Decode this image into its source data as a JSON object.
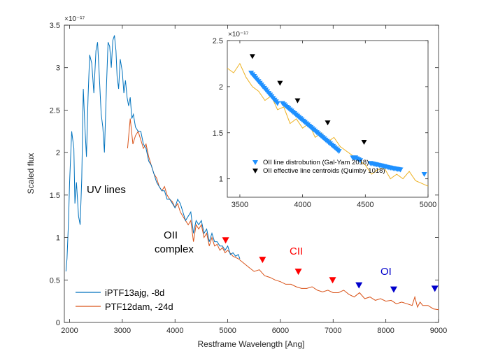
{
  "colors": {
    "blue_series": "#0072BD",
    "orange_series": "#D95319",
    "cii_marker": "#FF0000",
    "oi_marker": "#0000CC",
    "inset_blue": "#1E90FF",
    "inset_orange": "#EDB120",
    "inset_black": "#000000"
  },
  "chart_data": [
    {
      "type": "line",
      "xlabel": "Restframe Wavelength [Ang]",
      "ylabel": "Scaled flux",
      "y_exponent": "×10⁻¹⁷",
      "xlim": [
        1900,
        9000
      ],
      "ylim": [
        0,
        3.5e-17
      ],
      "xticks": [
        2000,
        3000,
        4000,
        5000,
        6000,
        7000,
        8000,
        9000
      ],
      "xtick_labels": [
        "2000",
        "3000",
        "4000",
        "5000",
        "6000",
        "7000",
        "8000",
        "9000"
      ],
      "yticks": [
        0,
        0.5,
        1,
        1.5,
        2,
        2.5,
        3,
        3.5
      ],
      "ytick_labels": [
        "0",
        "0.5",
        "1",
        "1.5",
        "2",
        "2.5",
        "3",
        "3.5"
      ],
      "grid": false,
      "legend_position": "bottom-left",
      "series": [
        {
          "name": "iPTF13ajg, -8d",
          "color": "#0072BD",
          "x": [
            1930,
            1950,
            1980,
            2000,
            2040,
            2080,
            2100,
            2130,
            2170,
            2200,
            2230,
            2260,
            2290,
            2320,
            2350,
            2380,
            2420,
            2460,
            2500,
            2530,
            2560,
            2600,
            2630,
            2660,
            2700,
            2730,
            2760,
            2790,
            2820,
            2850,
            2880,
            2900,
            2930,
            2960,
            3000,
            3030,
            3060,
            3090,
            3120,
            3150,
            3180,
            3210,
            3250,
            3300,
            3350,
            3400,
            3450,
            3500,
            3550,
            3600,
            3650,
            3700,
            3750,
            3800,
            3850,
            3900,
            3950,
            4000,
            4050,
            4100,
            4150,
            4200,
            4250,
            4300,
            4350,
            4400,
            4450,
            4500,
            4550,
            4600,
            4650,
            4700,
            4750,
            4800,
            4850,
            4900,
            4950,
            5000,
            5050,
            5100,
            5150,
            5200,
            5230
          ],
          "y": [
            0.6,
            0.75,
            1.2,
            1.65,
            2.25,
            2.05,
            1.4,
            1.65,
            1.25,
            1.15,
            1.7,
            2.75,
            2.3,
            1.95,
            2.65,
            3.15,
            3.05,
            2.7,
            3.2,
            3.3,
            2.95,
            2.45,
            2.3,
            2.0,
            2.8,
            3.3,
            3.25,
            3.0,
            3.32,
            3.38,
            3.2,
            2.9,
            2.75,
            3.1,
            2.95,
            2.7,
            2.85,
            2.65,
            2.55,
            2.65,
            2.4,
            2.45,
            2.3,
            2.25,
            2.25,
            2.1,
            2.05,
            1.9,
            1.85,
            1.75,
            1.65,
            1.6,
            1.55,
            1.55,
            1.45,
            1.45,
            1.4,
            1.35,
            1.45,
            1.4,
            1.3,
            1.2,
            1.25,
            1.3,
            1.05,
            1.2,
            1.15,
            1.2,
            1.05,
            1.1,
            0.95,
            1.05,
            0.95,
            0.95,
            0.9,
            0.9,
            0.85,
            0.9,
            0.8,
            0.82,
            0.78,
            0.8,
            0.75
          ]
        },
        {
          "name": "PTF12dam, -24d",
          "color": "#D95319",
          "x": [
            3100,
            3150,
            3200,
            3250,
            3300,
            3350,
            3400,
            3450,
            3500,
            3550,
            3600,
            3650,
            3700,
            3750,
            3800,
            3850,
            3900,
            3950,
            4000,
            4050,
            4100,
            4150,
            4200,
            4250,
            4300,
            4350,
            4400,
            4450,
            4500,
            4550,
            4600,
            4650,
            4700,
            4750,
            4800,
            4850,
            4900,
            4950,
            5000,
            5100,
            5200,
            5300,
            5400,
            5500,
            5600,
            5700,
            5800,
            5900,
            6000,
            6100,
            6200,
            6300,
            6400,
            6500,
            6600,
            6700,
            6800,
            6900,
            7000,
            7100,
            7200,
            7300,
            7400,
            7500,
            7600,
            7700,
            7800,
            7900,
            8000,
            8100,
            8200,
            8300,
            8400,
            8500,
            8550,
            8600,
            8650,
            8700,
            8800,
            8900,
            9000
          ],
          "y": [
            2.05,
            2.4,
            2.1,
            2.2,
            2.25,
            2.15,
            2.05,
            2.1,
            1.95,
            1.85,
            1.75,
            1.7,
            1.6,
            1.55,
            1.6,
            1.5,
            1.45,
            1.42,
            1.35,
            1.4,
            1.3,
            1.25,
            1.2,
            1.15,
            1.2,
            0.95,
            1.15,
            1.1,
            1.15,
            1.0,
            1.05,
            0.9,
            1.0,
            0.9,
            0.92,
            0.85,
            0.88,
            0.82,
            0.85,
            0.78,
            0.75,
            0.7,
            0.65,
            0.6,
            0.62,
            0.55,
            0.53,
            0.5,
            0.48,
            0.45,
            0.45,
            0.42,
            0.4,
            0.4,
            0.42,
            0.38,
            0.36,
            0.38,
            0.35,
            0.35,
            0.38,
            0.33,
            0.3,
            0.35,
            0.28,
            0.3,
            0.26,
            0.28,
            0.25,
            0.26,
            0.22,
            0.24,
            0.22,
            0.2,
            0.3,
            0.18,
            0.24,
            0.2,
            0.2,
            0.16,
            0.15
          ]
        }
      ],
      "markers": [
        {
          "group": "CII",
          "color": "#FF0000",
          "points": [
            [
              4960,
              0.97
            ],
            [
              5660,
              0.74
            ],
            [
              6340,
              0.6
            ],
            [
              6990,
              0.5
            ]
          ]
        },
        {
          "group": "OI",
          "color": "#0000CC",
          "points": [
            [
              7490,
              0.44
            ],
            [
              8150,
              0.39
            ],
            [
              8930,
              0.4
            ]
          ]
        }
      ],
      "annotations": [
        {
          "text": "UV lines",
          "color": "#000000"
        },
        {
          "text": "OII",
          "color": "#000000"
        },
        {
          "text": "complex",
          "color": "#000000"
        },
        {
          "text": "CII",
          "color": "#FF0000"
        },
        {
          "text": "OI",
          "color": "#0000CC"
        }
      ]
    },
    {
      "type": "line",
      "xlabel": "",
      "ylabel": "",
      "y_exponent": "×10⁻¹⁷",
      "xlim": [
        3400,
        5000
      ],
      "ylim": [
        8e-18,
        2.5e-17
      ],
      "xticks": [
        3500,
        4000,
        4500,
        5000
      ],
      "xtick_labels": [
        "3500",
        "4000",
        "4500",
        "5000"
      ],
      "yticks": [
        1,
        1.5,
        2,
        2.5
      ],
      "ytick_labels": [
        "1",
        "1.5",
        "2",
        "2.5"
      ],
      "grid": false,
      "legend_position": "bottom-left",
      "series": [
        {
          "name": "",
          "color": "#EDB120",
          "x": [
            3400,
            3450,
            3500,
            3550,
            3600,
            3650,
            3700,
            3750,
            3800,
            3850,
            3900,
            3950,
            4000,
            4050,
            4100,
            4150,
            4200,
            4250,
            4300,
            4350,
            4400,
            4450,
            4500,
            4550,
            4600,
            4650,
            4700,
            4750,
            4800,
            4850,
            4900,
            4950,
            5000
          ],
          "y": [
            2.2,
            2.15,
            2.25,
            2.1,
            2.0,
            1.95,
            1.85,
            1.9,
            1.75,
            1.78,
            1.6,
            1.65,
            1.55,
            1.6,
            1.45,
            1.5,
            1.4,
            1.45,
            1.35,
            1.3,
            1.25,
            1.2,
            1.15,
            1.05,
            1.1,
            1.12,
            1.0,
            1.05,
            1.0,
            1.08,
            0.98,
            0.95,
            0.92
          ]
        }
      ],
      "markers": [
        {
          "group": "OII line distrobution (Gal-Yam 2018)",
          "color": "#1E90FF",
          "range": [
            [
              3590,
              2.15
            ],
            [
              3800,
              1.82
            ],
            [
              3840,
              1.82
            ],
            [
              4290,
              1.3
            ],
            [
              4400,
              1.23
            ],
            [
              4420,
              1.23
            ],
            [
              4460,
              1.2
            ],
            [
              4540,
              1.17
            ],
            [
              4700,
              1.12
            ],
            [
              4780,
              1.1
            ],
            [
              4970,
              1.05
            ]
          ]
        },
        {
          "group": "OII effective line centroids (Quimby 1018)",
          "color": "#000000",
          "points": [
            [
              3600,
              2.33
            ],
            [
              3820,
              2.04
            ],
            [
              3960,
              1.85
            ],
            [
              4200,
              1.61
            ],
            [
              4490,
              1.4
            ]
          ]
        }
      ],
      "legend": [
        "OII line distrobution (Gal-Yam 2018)",
        "OII effective line centroids (Quimby 1018)"
      ]
    }
  ]
}
